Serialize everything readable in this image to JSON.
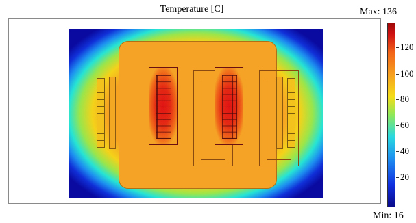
{
  "plot": {
    "title": "Temperature [C]"
  },
  "colorbar": {
    "max_label": "Max: 136",
    "min_label": "Min: 16",
    "ticks": [
      "120",
      "100",
      "80",
      "60",
      "40",
      "20"
    ]
  },
  "colors": {
    "hot": "#e01414",
    "core": "#f5a326",
    "ambient": "#0a0aa0"
  }
}
